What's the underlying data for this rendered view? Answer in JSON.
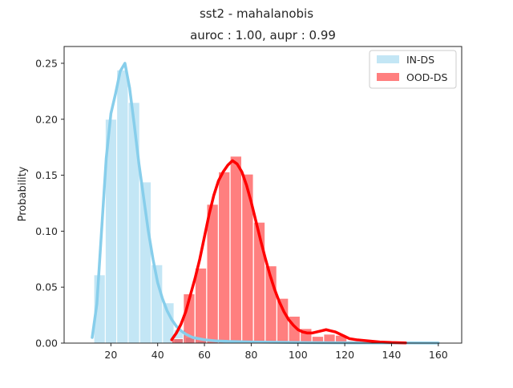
{
  "chart_data": {
    "type": "bar",
    "suptitle": "sst2 - mahalanobis",
    "title": "auroc : 1.00, aupr : 0.99",
    "xlabel": "",
    "ylabel": "Probability",
    "xlim": [
      0,
      170
    ],
    "ylim": [
      0,
      0.265
    ],
    "xticks": [
      20,
      40,
      60,
      80,
      100,
      120,
      140,
      160
    ],
    "yticks": [
      0.0,
      0.05,
      0.1,
      0.15,
      0.2,
      0.25
    ],
    "ytick_labels": [
      "0.00",
      "0.05",
      "0.10",
      "0.15",
      "0.20",
      "0.25"
    ],
    "grid": false,
    "legend_position": "top-right",
    "bin_width": 4.9,
    "series": [
      {
        "name": "IN-DS",
        "color": "#87ceeb",
        "bin_starts": [
          12.7,
          17.6,
          22.5,
          27.4,
          32.3,
          37.2,
          42.1,
          47.0,
          51.9,
          56.8,
          61.7,
          66.6,
          71.5,
          76.4,
          81.3,
          86.2,
          91.1,
          96.0,
          100.9,
          105.8,
          110.7,
          115.6,
          120.5,
          125.4,
          130.3,
          135.2,
          140.1,
          145.0,
          149.9,
          154.8
        ],
        "values": [
          0.061,
          0.2,
          0.244,
          0.215,
          0.144,
          0.07,
          0.036,
          0.012,
          0.005,
          0.002,
          0.001,
          0.001,
          0.0005,
          0.0005,
          0.0003,
          0.0003,
          0.0002,
          0.0002,
          0.0002,
          0.0002,
          0.0001,
          0.0001,
          0.0001,
          0.0001,
          0.0001,
          0.0001,
          0.0001,
          0.0001,
          0.0001,
          0.0001
        ],
        "kde": {
          "x": [
            12,
            14,
            16,
            18,
            20,
            22,
            24,
            26,
            28,
            30,
            32,
            34,
            36,
            38,
            40,
            42,
            44,
            46,
            48,
            50,
            52,
            55,
            60,
            65,
            70,
            80,
            100,
            120,
            140,
            160
          ],
          "y": [
            0.005,
            0.035,
            0.1,
            0.165,
            0.205,
            0.223,
            0.243,
            0.25,
            0.228,
            0.195,
            0.16,
            0.13,
            0.1,
            0.075,
            0.054,
            0.04,
            0.029,
            0.021,
            0.015,
            0.011,
            0.008,
            0.005,
            0.003,
            0.002,
            0.0015,
            0.001,
            0.0005,
            0.0003,
            0.0002,
            0.0001
          ]
        }
      },
      {
        "name": "OOD-DS",
        "color": "#ff0000",
        "bin_starts": [
          46.0,
          51.0,
          56.0,
          61.0,
          66.0,
          71.0,
          76.0,
          81.0,
          86.0,
          91.0,
          96.0,
          101.0,
          106.0,
          111.0,
          116.0,
          121.0,
          126.0,
          131.0,
          136.0,
          141.0
        ],
        "values": [
          0.004,
          0.044,
          0.067,
          0.124,
          0.153,
          0.167,
          0.151,
          0.108,
          0.069,
          0.04,
          0.024,
          0.013,
          0.006,
          0.008,
          0.007,
          0.002,
          0.001,
          0.001,
          0.001,
          0.001
        ],
        "kde": {
          "x": [
            46,
            48,
            50,
            52,
            54,
            56,
            58,
            60,
            62,
            64,
            66,
            68,
            70,
            72,
            74,
            76,
            78,
            80,
            82,
            84,
            86,
            88,
            90,
            92,
            94,
            96,
            98,
            100,
            102,
            104,
            106,
            108,
            110,
            112,
            114,
            116,
            118,
            120,
            122,
            125,
            130,
            135,
            140,
            146
          ],
          "y": [
            0.003,
            0.009,
            0.017,
            0.028,
            0.043,
            0.058,
            0.075,
            0.095,
            0.115,
            0.132,
            0.145,
            0.153,
            0.159,
            0.163,
            0.16,
            0.153,
            0.141,
            0.126,
            0.109,
            0.092,
            0.076,
            0.061,
            0.048,
            0.037,
            0.028,
            0.021,
            0.016,
            0.012,
            0.01,
            0.009,
            0.009,
            0.01,
            0.011,
            0.012,
            0.011,
            0.01,
            0.008,
            0.006,
            0.004,
            0.003,
            0.002,
            0.001,
            0.0005,
            0.0002
          ]
        }
      }
    ]
  }
}
